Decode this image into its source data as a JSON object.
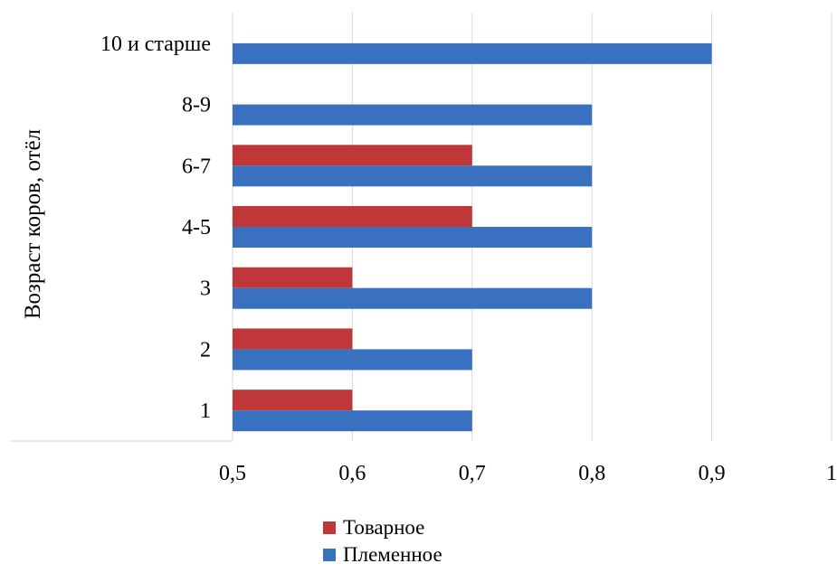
{
  "chart_data": {
    "type": "bar",
    "orientation": "horizontal",
    "ylabel": "Возраст коров, отёл",
    "categories": [
      "1",
      "2",
      "3",
      "4-5",
      "6-7",
      "8-9",
      "10 и старше"
    ],
    "series": [
      {
        "name": "Товарное",
        "color": "#C0373A",
        "values": [
          0.6,
          0.6,
          0.6,
          0.7,
          0.7,
          null,
          null
        ]
      },
      {
        "name": "Племенное",
        "color": "#3A70C0",
        "values": [
          0.7,
          0.7,
          0.8,
          0.8,
          0.8,
          0.8,
          0.9
        ]
      }
    ],
    "xlim": [
      0.5,
      1.0
    ],
    "xticks": [
      "0,5",
      "0,6",
      "0,7",
      "0,8",
      "0,9",
      "1"
    ],
    "grid": true,
    "legend_position": "bottom"
  }
}
